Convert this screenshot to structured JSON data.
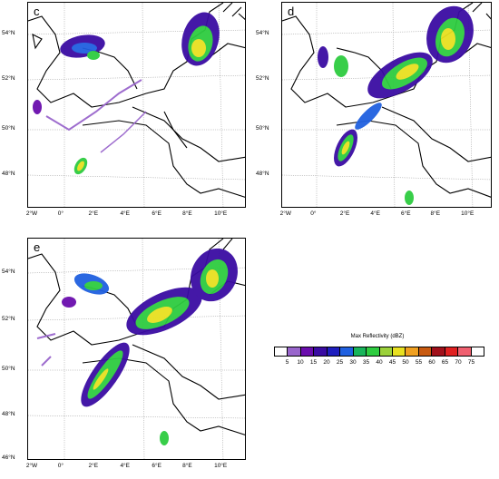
{
  "panels": [
    {
      "id": "c",
      "label": "c",
      "lon_ticks": [
        "2°W",
        "0°",
        "2°E",
        "4°E",
        "6°E",
        "8°E",
        "10°E"
      ],
      "lat_ticks": [
        "54°N",
        "52°N",
        "50°N",
        "48°N"
      ]
    },
    {
      "id": "d",
      "label": "d",
      "lon_ticks": [
        "2°W",
        "0°",
        "2°E",
        "4°E",
        "6°E",
        "8°E",
        "10°E"
      ],
      "lat_ticks": [
        "54°N",
        "52°N",
        "50°N",
        "48°N"
      ]
    },
    {
      "id": "e",
      "label": "e",
      "lon_ticks": [
        "2°W",
        "0°",
        "2°E",
        "4°E",
        "6°E",
        "8°E",
        "10°E"
      ],
      "lat_ticks": [
        "54°N",
        "52°N",
        "50°N",
        "48°N",
        "46°N"
      ]
    }
  ],
  "legend": {
    "title": "Max Reflectivity  (dBZ)",
    "labels": [
      "5",
      "10",
      "15",
      "20",
      "25",
      "30",
      "35",
      "40",
      "45",
      "50",
      "55",
      "60",
      "65",
      "70",
      "75"
    ],
    "colors": [
      "#ffffff",
      "#9966cc",
      "#6a0dad",
      "#3a0ca3",
      "#1f1fbf",
      "#2060e0",
      "#18b45a",
      "#2ecc40",
      "#9bd13a",
      "#e8e020",
      "#f0a020",
      "#c85a10",
      "#a0101a",
      "#e02020",
      "#f06070",
      "#ffffff"
    ]
  }
}
